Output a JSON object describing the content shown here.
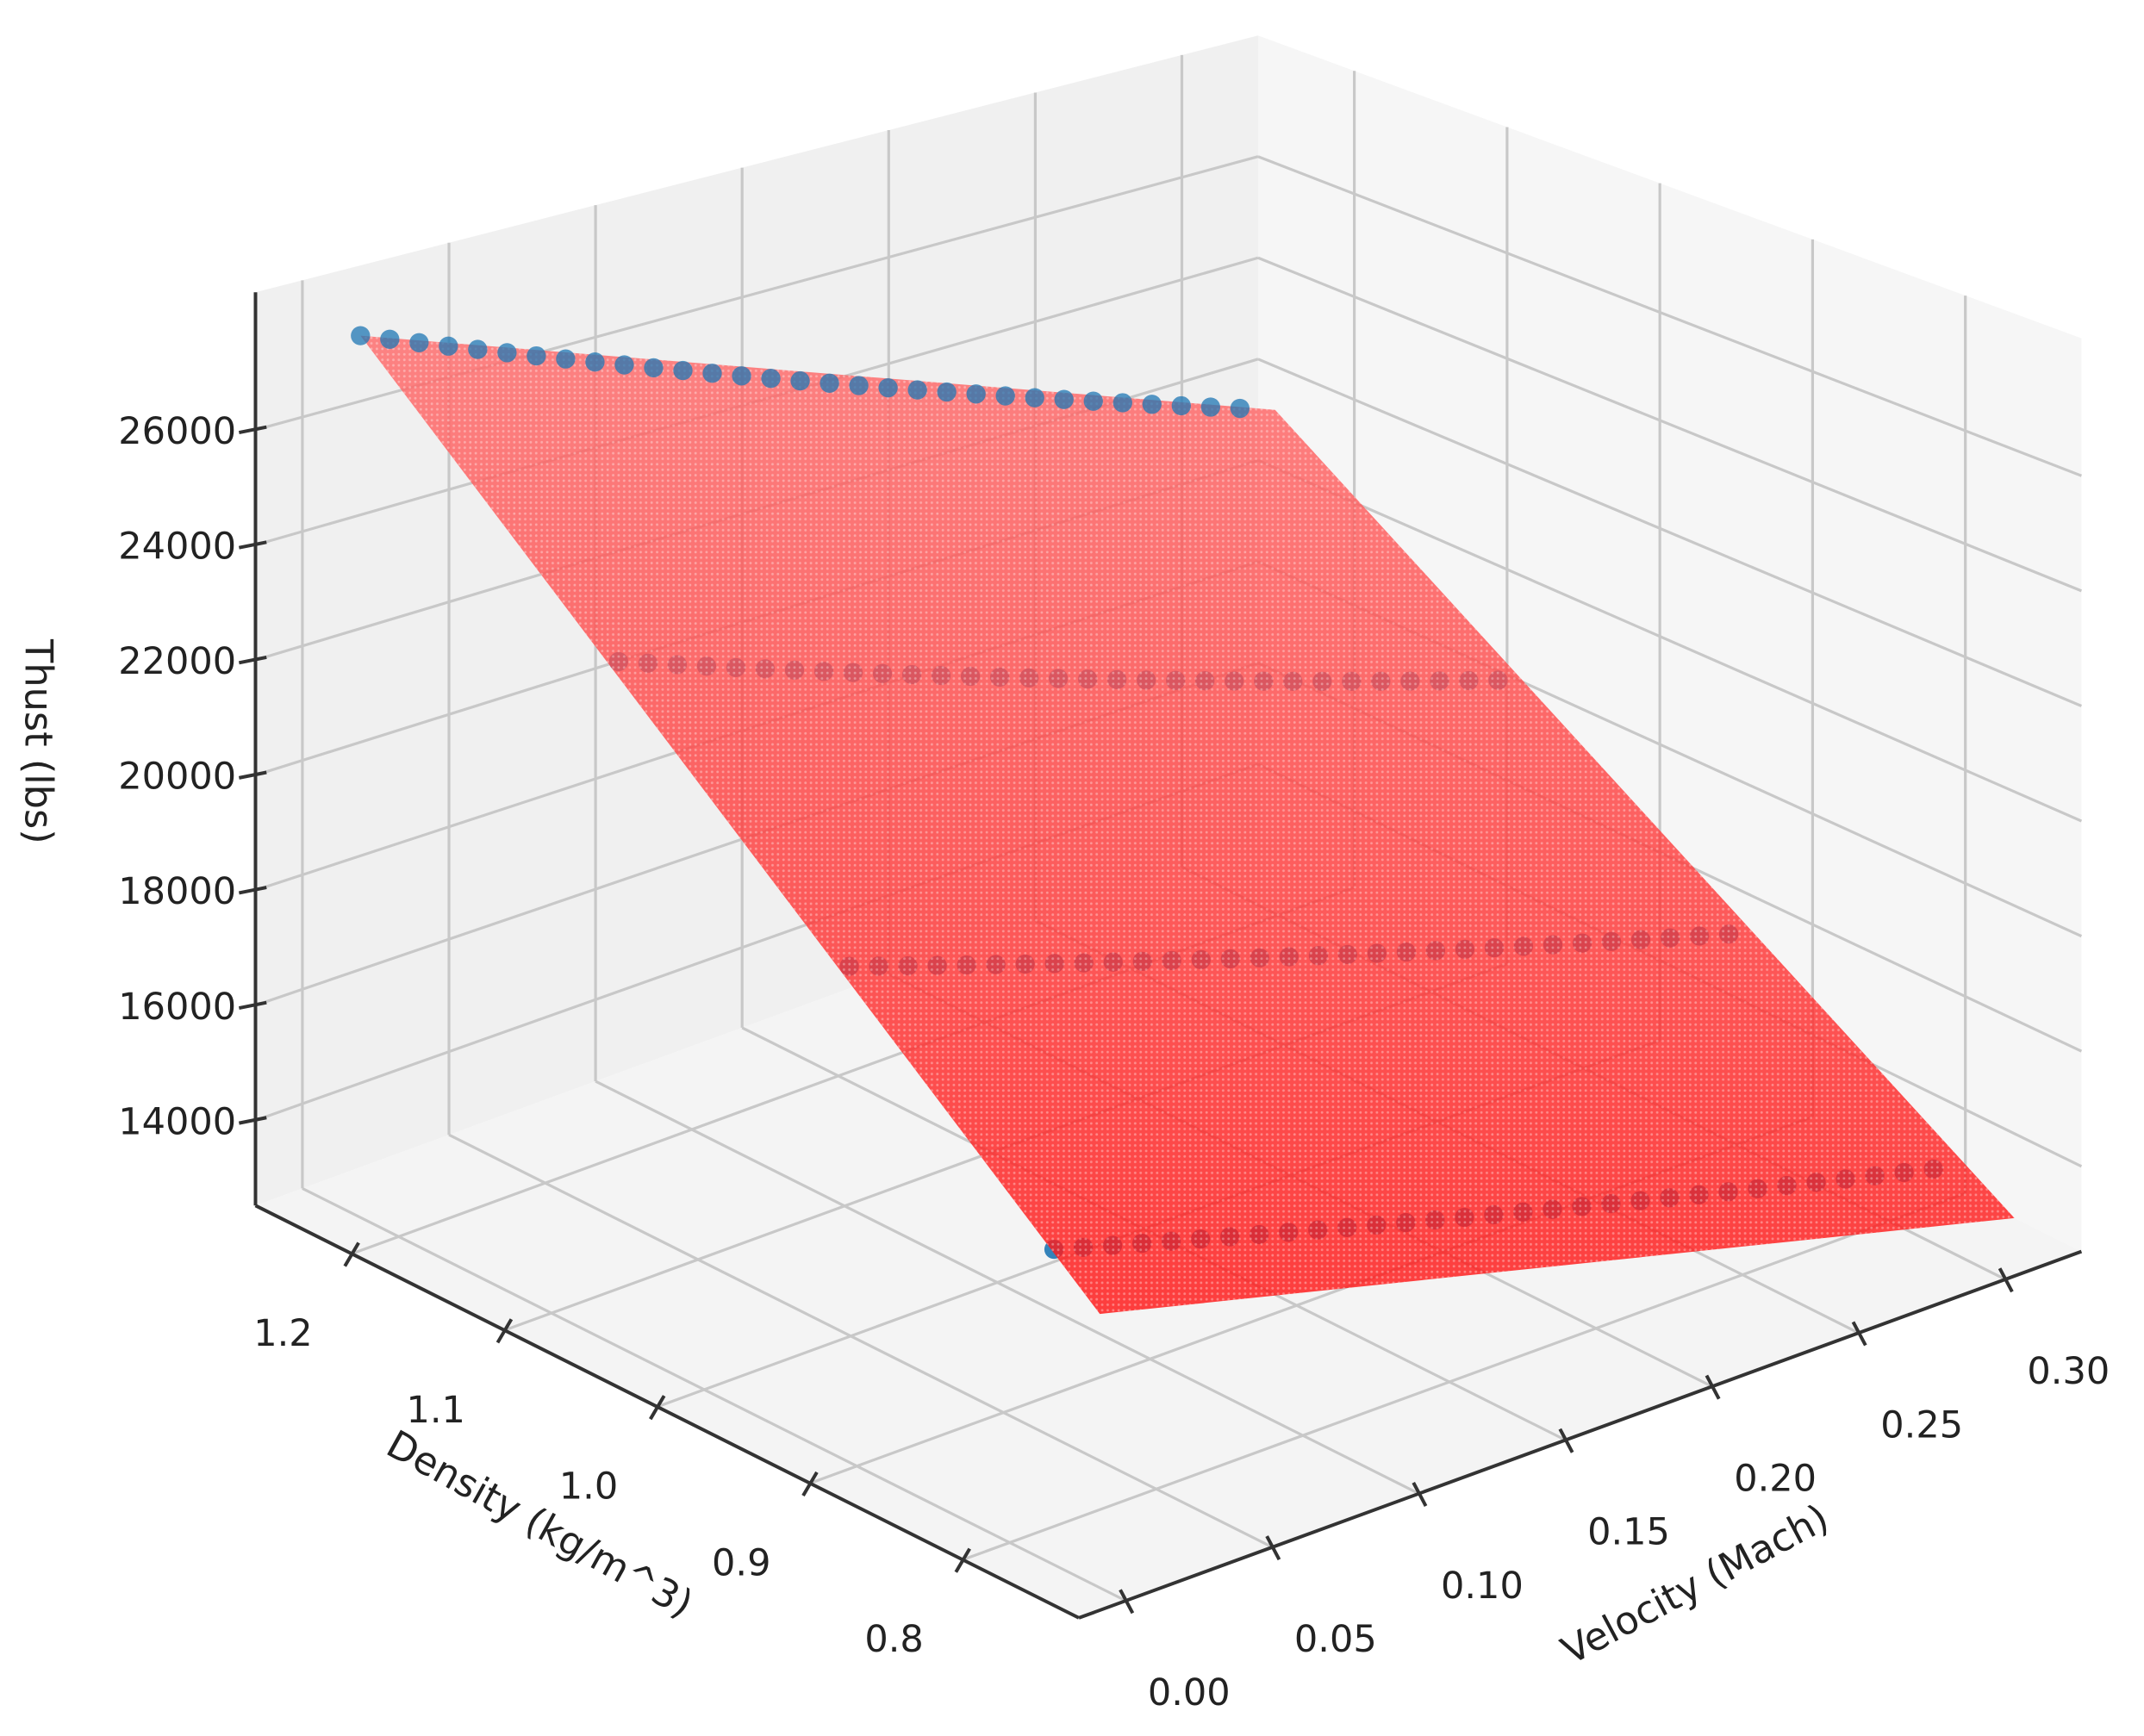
{
  "chart_data": {
    "type": "scatter3d+surface",
    "title": "",
    "xlabel": "Velocity (Mach)",
    "ylabel": "Density (kg/m^3)",
    "zlabel": "Thust (lbs)",
    "xlim": [
      -0.016,
      0.326
    ],
    "ylim": [
      0.724,
      1.263
    ],
    "zlim": [
      12520,
      28390
    ],
    "x_ticks": [
      "0.00",
      "0.05",
      "0.10",
      "0.15",
      "0.20",
      "0.25",
      "0.30"
    ],
    "y_ticks": [
      "0.8",
      "0.9",
      "1.0",
      "1.1",
      "1.2"
    ],
    "z_ticks": [
      "14000",
      "16000",
      "18000",
      "20000",
      "22000",
      "24000",
      "26000"
    ],
    "grid": true,
    "colors": {
      "points": "#1f77b4",
      "surface": "#ff2020",
      "pane": "#f2f2f2",
      "grid": "#c8c8c8"
    },
    "velocity": [
      0.0,
      0.01,
      0.02,
      0.03,
      0.04,
      0.05,
      0.06,
      0.07,
      0.08,
      0.09,
      0.1,
      0.11,
      0.12,
      0.13,
      0.14,
      0.15,
      0.16,
      0.17,
      0.18,
      0.19,
      0.2,
      0.21,
      0.22,
      0.23,
      0.24,
      0.25,
      0.26,
      0.27,
      0.28,
      0.29,
      0.3
    ],
    "series": [
      {
        "density": 1.225,
        "thrust": [
          27800,
          27605,
          27411,
          27216,
          27022,
          26827,
          26632,
          26438,
          26243,
          26049,
          25854,
          25660,
          25465,
          25270,
          25076,
          24881,
          24687,
          24492,
          24297,
          24103,
          23908,
          23714,
          23519,
          23324,
          23130,
          22935,
          22741,
          22546,
          22351,
          22157,
          21962
        ]
      },
      {
        "density": 1.056,
        "thrust": [
          23964,
          23796,
          23629,
          23461,
          23293,
          23126,
          22958,
          22790,
          22622,
          22455,
          22287,
          22119,
          21952,
          21784,
          21616,
          21449,
          21281,
          21113,
          20945,
          20778,
          20610,
          20442,
          20275,
          20107,
          19939,
          19772,
          19604,
          19436,
          19268,
          19101,
          18933
        ]
      },
      {
        "density": 0.905,
        "thrust": [
          20544,
          20400,
          20256,
          20113,
          19969,
          19825,
          19681,
          19537,
          19393,
          19250,
          19106,
          18962,
          18818,
          18674,
          18530,
          18386,
          18243,
          18099,
          17955,
          17811,
          17667,
          17523,
          17380,
          17236,
          17092,
          16948,
          16804,
          16660,
          16516,
          16373,
          16229
        ]
      },
      {
        "density": 0.771,
        "thrust": [
          17486,
          17364,
          17241,
          17119,
          16996,
          16874,
          16752,
          16629,
          16507,
          16384,
          16262,
          16140,
          16017,
          15895,
          15772,
          15650,
          15528,
          15405,
          15283,
          15160,
          15038,
          14916,
          14793,
          14671,
          14548,
          14426,
          14304,
          14181,
          14059,
          13936,
          13814
        ]
      }
    ]
  }
}
